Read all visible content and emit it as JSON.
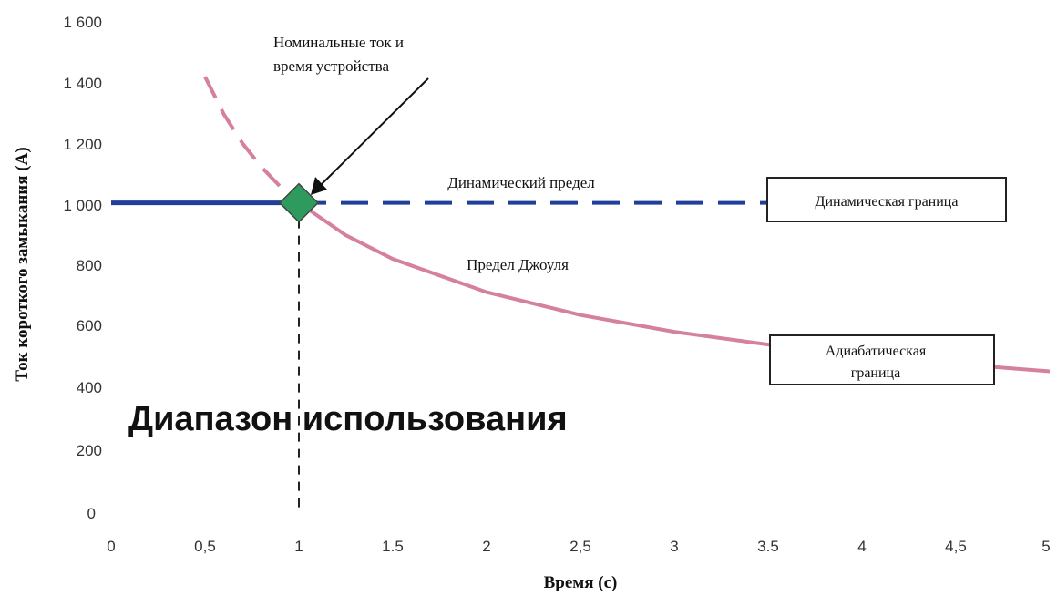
{
  "chart_data": {
    "type": "line",
    "xlabel": "Время (с)",
    "ylabel": "Ток короткого замыкания (А)",
    "xlim": [
      0,
      5
    ],
    "ylim": [
      0,
      1600
    ],
    "x_ticks": [
      "0",
      "0,5",
      "1",
      "1.5",
      "2",
      "2,5",
      "3",
      "3.5",
      "4",
      "4,5",
      "5"
    ],
    "y_ticks": [
      "0",
      "200",
      "400",
      "600",
      "800",
      "1 000",
      "1 200",
      "1 400",
      "1 600"
    ],
    "colors": {
      "dynamic": "#1f3f9a",
      "joule": "#d4809e",
      "rated_marker": "#2e9a5e",
      "guide": "#222222"
    },
    "series": [
      {
        "key": "dynamic",
        "x": [
          0,
          0.5,
          1,
          1.5,
          2,
          2.5,
          3,
          3.5
        ],
        "y": [
          1000,
          1000,
          1000,
          1000,
          1000,
          1000,
          1000,
          1000
        ],
        "style": "solid to x=1, dashed after"
      },
      {
        "key": "joule",
        "x": [
          0.5,
          0.6,
          0.7,
          0.8,
          0.9,
          1,
          1.25,
          1.5,
          2,
          2.5,
          3,
          3.5,
          4,
          4.5,
          5
        ],
        "y": [
          1414,
          1291,
          1195,
          1118,
          1054,
          1000,
          894,
          816,
          707,
          632,
          577,
          535,
          500,
          471,
          447
        ],
        "style": "dashed to x=1, solid after"
      }
    ],
    "rated_point": {
      "x": 1,
      "y": 1000
    },
    "annotations": {
      "rated": [
        "Номинальные ток и",
        "время устройства"
      ],
      "dynamic_limit": "Динамический предел",
      "dynamic_boundary": "Динамическая граница",
      "joule_limit": "Предел Джоуля",
      "adiabatic_boundary": [
        "Адиабатическая",
        "граница"
      ],
      "usage_range": "Диапазон использования"
    }
  }
}
